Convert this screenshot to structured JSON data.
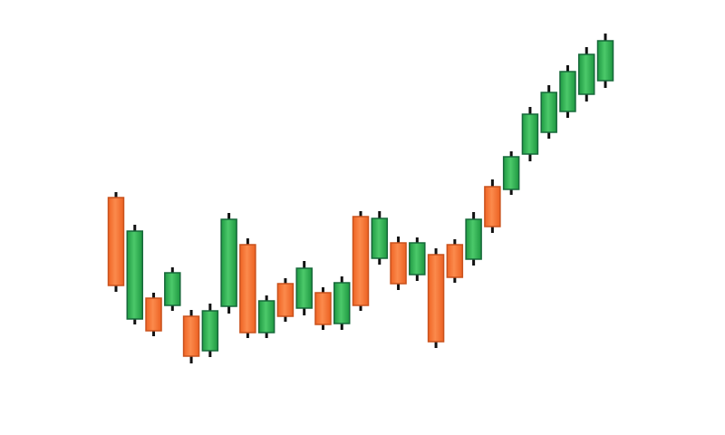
{
  "chart_data": {
    "type": "candlestick",
    "title": "",
    "xlabel": "",
    "ylabel": "",
    "axes_visible": false,
    "grid": false,
    "colors": {
      "bullish": "#2bb24c",
      "bullish_border": "#17683a",
      "bearish": "#f36f2e",
      "bearish_border": "#c9521d",
      "wick": "#111111",
      "background": "#ffffff"
    },
    "candles": [
      {
        "open": 262,
        "high": 268,
        "low": 158,
        "close": 165
      },
      {
        "open": 128,
        "high": 232,
        "low": 122,
        "close": 225
      },
      {
        "open": 151,
        "high": 157,
        "low": 109,
        "close": 115
      },
      {
        "open": 143,
        "high": 185,
        "low": 137,
        "close": 179
      },
      {
        "open": 131,
        "high": 138,
        "low": 79,
        "close": 87
      },
      {
        "open": 93,
        "high": 145,
        "low": 86,
        "close": 137
      },
      {
        "open": 142,
        "high": 245,
        "low": 134,
        "close": 238
      },
      {
        "open": 210,
        "high": 217,
        "low": 107,
        "close": 113
      },
      {
        "open": 113,
        "high": 154,
        "low": 107,
        "close": 148
      },
      {
        "open": 167,
        "high": 173,
        "low": 125,
        "close": 131
      },
      {
        "open": 140,
        "high": 192,
        "low": 132,
        "close": 184
      },
      {
        "open": 157,
        "high": 163,
        "low": 116,
        "close": 122
      },
      {
        "open": 123,
        "high": 175,
        "low": 116,
        "close": 168
      },
      {
        "open": 241,
        "high": 247,
        "low": 137,
        "close": 143
      },
      {
        "open": 195,
        "high": 247,
        "low": 188,
        "close": 239
      },
      {
        "open": 212,
        "high": 219,
        "low": 160,
        "close": 167
      },
      {
        "open": 177,
        "high": 218,
        "low": 170,
        "close": 212
      },
      {
        "open": 199,
        "high": 206,
        "low": 96,
        "close": 103
      },
      {
        "open": 210,
        "high": 216,
        "low": 168,
        "close": 174
      },
      {
        "open": 194,
        "high": 246,
        "low": 187,
        "close": 238
      },
      {
        "open": 274,
        "high": 282,
        "low": 223,
        "close": 230
      },
      {
        "open": 271,
        "high": 313,
        "low": 265,
        "close": 307
      },
      {
        "open": 310,
        "high": 362,
        "low": 302,
        "close": 354
      },
      {
        "open": 334,
        "high": 386,
        "low": 327,
        "close": 378
      },
      {
        "open": 357,
        "high": 408,
        "low": 350,
        "close": 401
      },
      {
        "open": 376,
        "high": 428,
        "low": 368,
        "close": 420
      },
      {
        "open": 391,
        "high": 443,
        "low": 383,
        "close": 435
      }
    ]
  }
}
